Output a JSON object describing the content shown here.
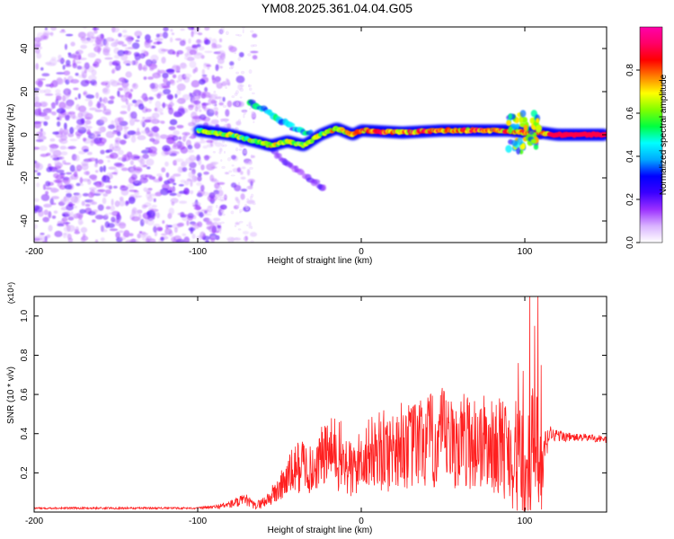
{
  "title": "YM08.2025.361.04.04.G05",
  "chart_data": [
    {
      "type": "heatmap",
      "xlabel": "Height of straight line (km)",
      "ylabel": "Frequency (Hz)",
      "xlim": [
        -200,
        150
      ],
      "ylim": [
        -50,
        50
      ],
      "xticks": [
        -200,
        -100,
        0,
        100
      ],
      "yticks": [
        -40,
        -20,
        0,
        20,
        40
      ],
      "colorbar": {
        "label": "Normalized spectral amplitude",
        "range": [
          0.0,
          1.0
        ],
        "ticks": [
          0.0,
          0.2,
          0.4,
          0.6,
          0.8
        ],
        "tick_labels": [
          "0.0",
          "0.2",
          "0.4",
          "0.6",
          "0.8"
        ],
        "colormap": [
          "#ffffff",
          "#d9b3ff",
          "#9b30ff",
          "#3a00ff",
          "#0000ff",
          "#00aaff",
          "#00ffff",
          "#00ff40",
          "#80ff00",
          "#ffff00",
          "#ff8000",
          "#ff0000",
          "#ff0066",
          "#ff00aa"
        ]
      },
      "features": [
        {
          "name": "noise",
          "x_range": [
            -200,
            -85
          ],
          "freq_range": [
            -50,
            50
          ],
          "amplitude": 0.15
        },
        {
          "name": "main-ridge",
          "points": [
            [
              -100,
              2
            ],
            [
              -80,
              0
            ],
            [
              -65,
              -3
            ],
            [
              -55,
              -5
            ],
            [
              -45,
              -3
            ],
            [
              -35,
              -5
            ],
            [
              -25,
              0
            ],
            [
              -15,
              3
            ],
            [
              -5,
              0
            ],
            [
              0,
              2
            ],
            [
              25,
              1
            ],
            [
              50,
              2
            ],
            [
              75,
              2
            ],
            [
              90,
              2
            ],
            [
              100,
              1
            ],
            [
              110,
              1
            ],
            [
              120,
              0
            ],
            [
              150,
              0
            ]
          ],
          "amplitude": 0.85
        },
        {
          "name": "upper-branch",
          "points": [
            [
              -68,
              15
            ],
            [
              -58,
              11
            ],
            [
              -48,
              6
            ],
            [
              -38,
              2
            ],
            [
              -30,
              0
            ]
          ],
          "amplitude": 0.45
        },
        {
          "name": "lower-branch",
          "points": [
            [
              -60,
              -4
            ],
            [
              -50,
              -10
            ],
            [
              -40,
              -16
            ],
            [
              -30,
              -21
            ],
            [
              -22,
              -25
            ]
          ],
          "amplitude": 0.2
        },
        {
          "name": "burst",
          "x_range": [
            90,
            110
          ],
          "freq_range": [
            -8,
            10
          ],
          "amplitude": 0.5
        }
      ]
    },
    {
      "type": "line",
      "xlabel": "Height of straight line (km)",
      "ylabel": "SNR (10 * v/v)",
      "y_multiplier": "(x10⁴)",
      "xlim": [
        -200,
        150
      ],
      "ylim": [
        0,
        1.1
      ],
      "xticks": [
        -200,
        -100,
        0,
        100
      ],
      "yticks": [
        0.2,
        0.4,
        0.6,
        0.8,
        1.0
      ],
      "series": [
        {
          "name": "SNR",
          "color": "#ff2020",
          "envelope": {
            "x": [
              -200,
              -150,
              -100,
              -90,
              -80,
              -75,
              -70,
              -65,
              -60,
              -55,
              -50,
              -45,
              -40,
              -35,
              -30,
              -25,
              -20,
              -15,
              -10,
              -5,
              0,
              5,
              10,
              15,
              20,
              25,
              30,
              35,
              40,
              45,
              50,
              55,
              60,
              65,
              70,
              75,
              80,
              85,
              90,
              95,
              100,
              103,
              106,
              108,
              110,
              112,
              115,
              120,
              130,
              140,
              150
            ],
            "mean": [
              0.02,
              0.02,
              0.02,
              0.025,
              0.04,
              0.05,
              0.06,
              0.03,
              0.05,
              0.08,
              0.12,
              0.18,
              0.22,
              0.25,
              0.2,
              0.28,
              0.3,
              0.3,
              0.25,
              0.2,
              0.28,
              0.3,
              0.32,
              0.3,
              0.33,
              0.35,
              0.33,
              0.35,
              0.36,
              0.35,
              0.38,
              0.34,
              0.36,
              0.37,
              0.35,
              0.36,
              0.33,
              0.34,
              0.32,
              0.28,
              0.15,
              0.2,
              0.3,
              0.25,
              0.12,
              0.3,
              0.4,
              0.39,
              0.38,
              0.38,
              0.37
            ],
            "spread": [
              0.005,
              0.005,
              0.005,
              0.01,
              0.02,
              0.03,
              0.03,
              0.02,
              0.03,
              0.05,
              0.08,
              0.1,
              0.14,
              0.14,
              0.12,
              0.15,
              0.18,
              0.2,
              0.18,
              0.16,
              0.15,
              0.18,
              0.2,
              0.22,
              0.2,
              0.23,
              0.22,
              0.24,
              0.26,
              0.25,
              0.26,
              0.24,
              0.25,
              0.25,
              0.26,
              0.25,
              0.24,
              0.25,
              0.28,
              0.3,
              0.3,
              0.35,
              0.45,
              0.3,
              0.25,
              0.12,
              0.05,
              0.03,
              0.02,
              0.02,
              0.02
            ]
          },
          "spikes": [
            [
              96,
              0.76
            ],
            [
              99,
              0.72
            ],
            [
              103,
              1.1
            ],
            [
              106,
              0.95
            ],
            [
              108,
              1.1
            ],
            [
              110,
              0.75
            ]
          ]
        }
      ]
    }
  ]
}
